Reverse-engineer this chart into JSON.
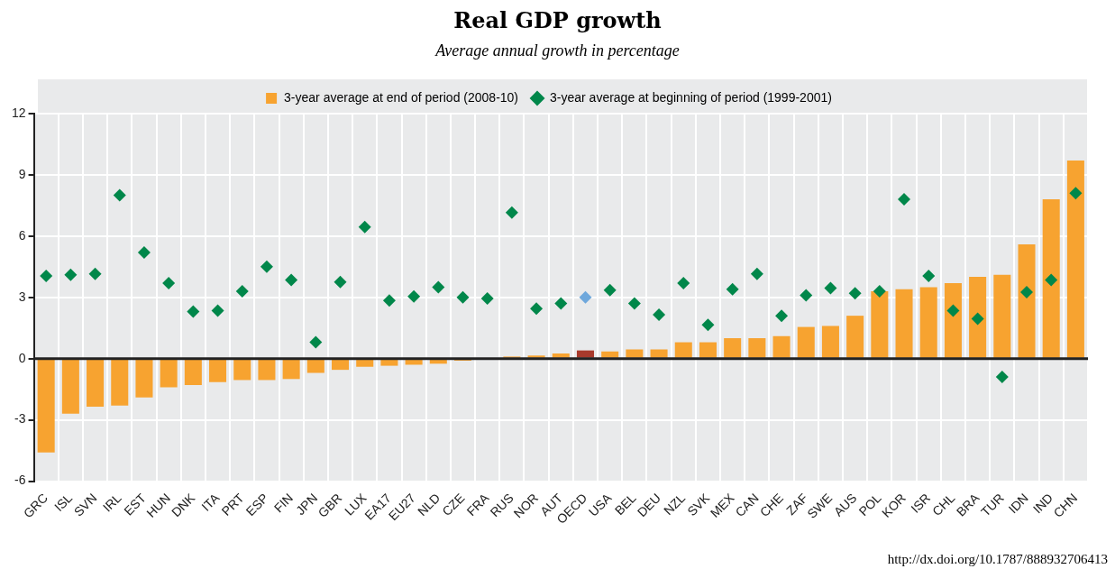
{
  "chart_data": {
    "type": "bar",
    "title": "Real GDP growth",
    "subtitle": "Average annual growth in percentage",
    "categories": [
      "GRC",
      "ISL",
      "SVN",
      "IRL",
      "EST",
      "HUN",
      "DNK",
      "ITA",
      "PRT",
      "ESP",
      "FIN",
      "JPN",
      "GBR",
      "LUX",
      "EA17",
      "EU27",
      "NLD",
      "CZE",
      "FRA",
      "RUS",
      "NOR",
      "AUT",
      "OECD",
      "USA",
      "BEL",
      "DEU",
      "NZL",
      "SVK",
      "MEX",
      "CAN",
      "CHE",
      "ZAF",
      "SWE",
      "AUS",
      "POL",
      "KOR",
      "ISR",
      "CHL",
      "BRA",
      "TUR",
      "IDN",
      "IND",
      "CHN"
    ],
    "series": [
      {
        "name": "3-year average at end of period (2008-10)",
        "color": "#f7a330",
        "colors": [
          "#f7a330",
          "#f7a330",
          "#f7a330",
          "#f7a330",
          "#f7a330",
          "#f7a330",
          "#f7a330",
          "#f7a330",
          "#f7a330",
          "#f7a330",
          "#f7a330",
          "#f7a330",
          "#f7a330",
          "#f7a330",
          "#f7a330",
          "#f7a330",
          "#f7a330",
          "#f7a330",
          "#f7a330",
          "#f7a330",
          "#f7a330",
          "#f7a330",
          "#a83a2c",
          "#f7a330",
          "#f7a330",
          "#f7a330",
          "#f7a330",
          "#f7a330",
          "#f7a330",
          "#f7a330",
          "#f7a330",
          "#f7a330",
          "#f7a330",
          "#f7a330",
          "#f7a330",
          "#f7a330",
          "#f7a330",
          "#f7a330",
          "#f7a330",
          "#f7a330",
          "#f7a330",
          "#f7a330",
          "#f7a330"
        ],
        "values": [
          -4.6,
          -2.7,
          -2.35,
          -2.3,
          -1.9,
          -1.4,
          -1.3,
          -1.15,
          -1.05,
          -1.05,
          -1.0,
          -0.7,
          -0.55,
          -0.4,
          -0.35,
          -0.3,
          -0.25,
          -0.1,
          0.0,
          0.1,
          0.15,
          0.25,
          0.4,
          0.35,
          0.45,
          0.45,
          0.8,
          0.8,
          1.0,
          1.0,
          1.1,
          1.55,
          1.6,
          2.1,
          3.3,
          3.4,
          3.5,
          3.7,
          4.0,
          4.1,
          5.6,
          7.8,
          9.7
        ]
      },
      {
        "name": "3-year average at beginning of period (1999-2001)",
        "type": "scatter",
        "marker": "diamond",
        "color": "#00874a",
        "colors": [
          "#00874a",
          "#00874a",
          "#00874a",
          "#00874a",
          "#00874a",
          "#00874a",
          "#00874a",
          "#00874a",
          "#00874a",
          "#00874a",
          "#00874a",
          "#00874a",
          "#00874a",
          "#00874a",
          "#00874a",
          "#00874a",
          "#00874a",
          "#00874a",
          "#00874a",
          "#00874a",
          "#00874a",
          "#00874a",
          "#6fa8dc",
          "#00874a",
          "#00874a",
          "#00874a",
          "#00874a",
          "#00874a",
          "#00874a",
          "#00874a",
          "#00874a",
          "#00874a",
          "#00874a",
          "#00874a",
          "#00874a",
          "#00874a",
          "#00874a",
          "#00874a",
          "#00874a",
          "#00874a",
          "#00874a",
          "#00874a",
          "#00874a"
        ],
        "values": [
          4.05,
          4.1,
          4.15,
          8.0,
          5.2,
          3.7,
          2.3,
          2.35,
          3.3,
          4.5,
          3.85,
          0.8,
          3.75,
          6.45,
          2.85,
          3.05,
          3.5,
          3.0,
          2.95,
          7.15,
          2.45,
          2.7,
          3.0,
          3.35,
          2.7,
          2.15,
          3.7,
          1.65,
          3.4,
          4.15,
          2.1,
          3.1,
          3.45,
          3.2,
          3.3,
          7.8,
          4.05,
          2.35,
          1.95,
          -0.9,
          3.25,
          3.85,
          8.1
        ]
      }
    ],
    "ylim": [
      -6,
      12
    ],
    "yticks": [
      -6,
      -3,
      0,
      3,
      6,
      9,
      12
    ],
    "grid": true,
    "legend": "top",
    "annotations": [
      "http://dx.doi.org/10.1787/888932706413"
    ]
  }
}
